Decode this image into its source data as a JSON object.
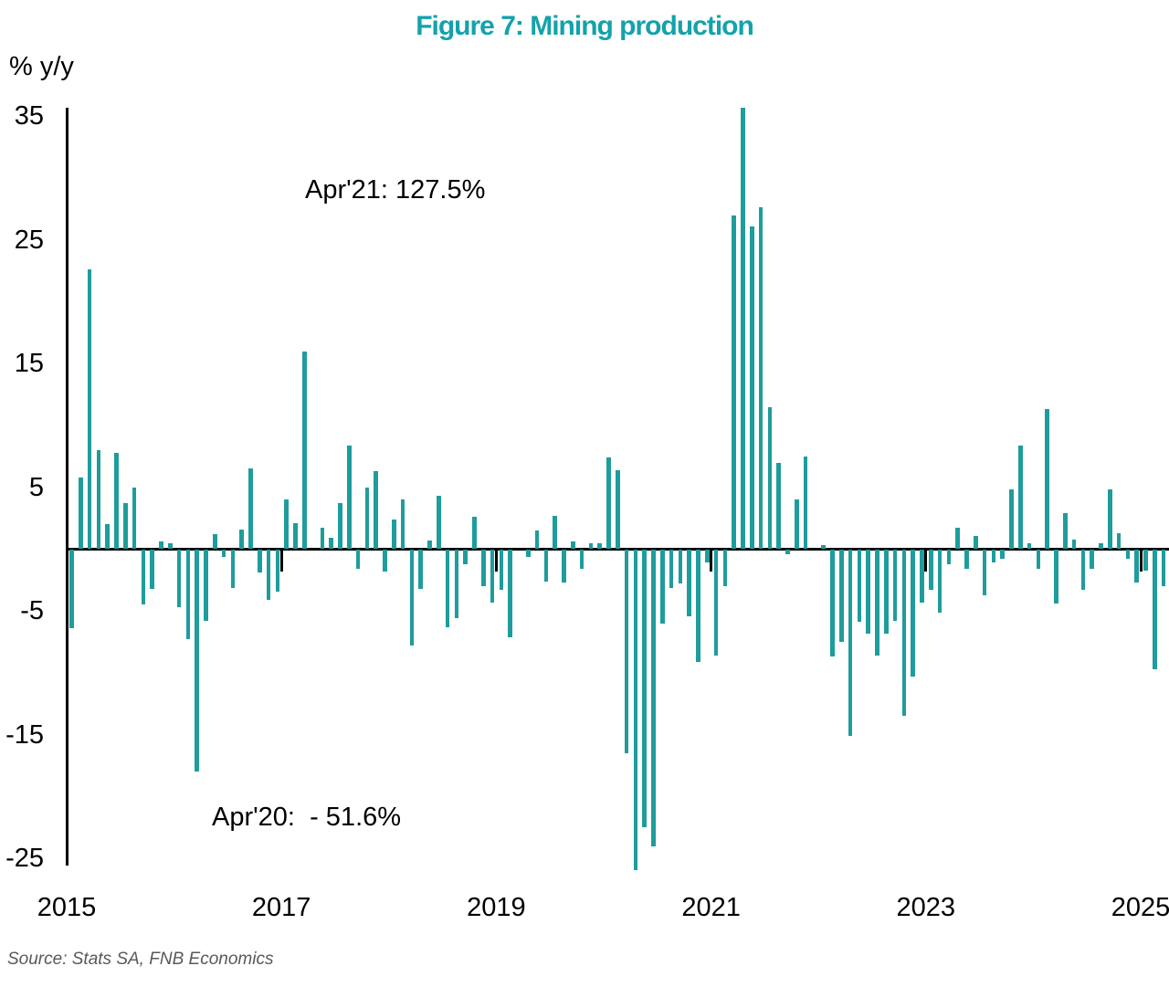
{
  "source": "Source: Stats SA, FNB Economics",
  "colors": {
    "bar": "#1F9C9C",
    "title": "#14A2AB",
    "axis": "#000000",
    "source_text": "#595959"
  },
  "chart_data": {
    "type": "bar",
    "title": "Figure 7: Mining production",
    "ylabel": "% y/y",
    "frequency": "monthly",
    "x_start": "2015-01",
    "x_end": "2025-03",
    "xticks": [
      "2015",
      "2017",
      "2019",
      "2021",
      "2023",
      "2025"
    ],
    "yticks": [
      35,
      25,
      15,
      5,
      -5,
      -15,
      -25
    ],
    "ylim_drawn": [
      -26,
      36
    ],
    "grid": false,
    "legend": "none",
    "annotations": [
      {
        "text": "Apr'21: 127.5%",
        "refers_to": "2021-04"
      },
      {
        "text": "Apr'20:  - 51.6%",
        "refers_to": "2020-04"
      }
    ],
    "clipped_bars": [
      {
        "month": "2020-04",
        "value": -51.6
      },
      {
        "month": "2021-04",
        "value": 127.5
      }
    ],
    "series": [
      {
        "name": "Mining production, % y/y",
        "values": [
          -6.4,
          5.8,
          22.6,
          8.0,
          2.0,
          7.8,
          3.7,
          5.0,
          -4.5,
          -3.2,
          0.6,
          0.5,
          -4.7,
          -7.3,
          -18.0,
          -5.8,
          1.2,
          -0.6,
          -3.1,
          1.6,
          6.5,
          -1.9,
          -4.1,
          -3.4,
          4.0,
          2.1,
          16.0,
          0.0,
          1.7,
          0.9,
          3.7,
          8.4,
          -1.6,
          5.0,
          6.3,
          -1.8,
          2.4,
          4.0,
          -7.8,
          -3.2,
          0.7,
          4.3,
          -6.3,
          -5.6,
          -1.2,
          2.6,
          -3.0,
          -4.3,
          -3.3,
          -7.1,
          0.0,
          -0.6,
          1.5,
          -2.6,
          2.7,
          -2.7,
          0.6,
          -1.6,
          0.5,
          0.5,
          7.4,
          6.4,
          -16.5,
          -51.6,
          -22.5,
          -24.0,
          -6.0,
          -3.1,
          -2.8,
          -5.4,
          -9.1,
          -1.1,
          -8.6,
          -3.0,
          27.0,
          127.5,
          26.1,
          27.6,
          11.5,
          7.0,
          -0.4,
          4.0,
          7.5,
          0.0,
          0.3,
          -8.7,
          -7.5,
          -15.1,
          -5.9,
          -6.8,
          -8.6,
          -6.8,
          -5.8,
          -13.5,
          -10.3,
          -4.3,
          -3.3,
          -5.1,
          -1.2,
          1.7,
          -1.6,
          1.1,
          -3.7,
          -1.1,
          -0.8,
          4.8,
          8.4,
          0.5,
          -1.6,
          11.3,
          -4.4,
          2.9,
          0.8,
          -3.3,
          -1.6,
          0.5,
          4.8,
          1.3,
          -0.8,
          -2.7,
          -1.7,
          -9.7,
          -3.0
        ]
      }
    ]
  }
}
